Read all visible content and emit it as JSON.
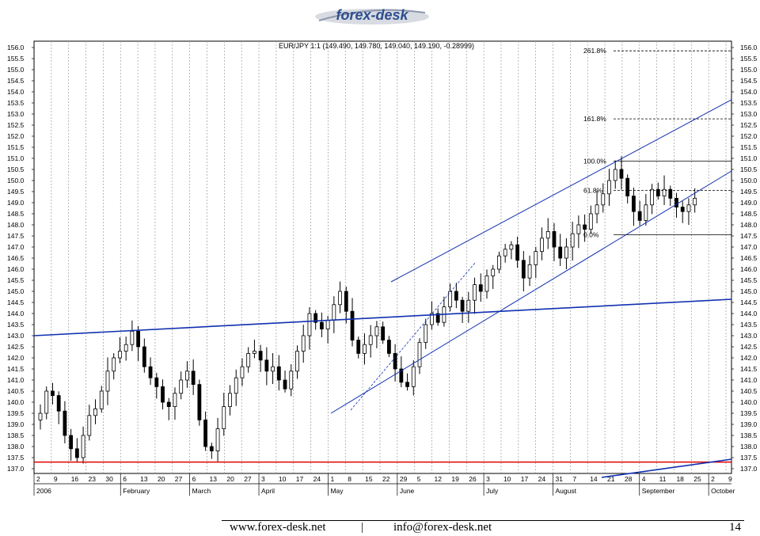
{
  "header": {
    "logo_text": "forex-desk"
  },
  "footer": {
    "website": "www.forex-desk.net",
    "separator": "|",
    "email": "info@forex-desk.net",
    "page": "14"
  },
  "chart_data": {
    "type": "candlestick",
    "title": "EUR/JPY 1:1 (149.490, 149.780, 149.040, 149.190, -0.28999)",
    "ylim": [
      137.0,
      156.0
    ],
    "y_ticks": [
      "156.0",
      "155.5",
      "155.0",
      "154.5",
      "154.0",
      "153.5",
      "153.0",
      "152.5",
      "152.0",
      "151.5",
      "151.0",
      "150.5",
      "150.0",
      "149.5",
      "149.0",
      "148.5",
      "148.0",
      "147.5",
      "147.0",
      "146.5",
      "146.0",
      "145.5",
      "145.0",
      "144.5",
      "144.0",
      "143.5",
      "143.0",
      "142.5",
      "142.0",
      "141.5",
      "141.0",
      "140.5",
      "140.0",
      "139.5",
      "139.0",
      "138.5",
      "138.0",
      "137.5",
      "137.0"
    ],
    "grid": "vertical-dotted",
    "x_day_labels": [
      "2",
      "9",
      "16",
      "23",
      "30",
      "6",
      "13",
      "20",
      "27",
      "6",
      "13",
      "20",
      "27",
      "3",
      "10",
      "17",
      "24",
      "1",
      "8",
      "15",
      "22",
      "29",
      "5",
      "12",
      "19",
      "26",
      "3",
      "10",
      "17",
      "24",
      "31",
      "7",
      "14",
      "21",
      "28",
      "4",
      "11",
      "18",
      "25",
      "2",
      "9"
    ],
    "x_month_labels": [
      {
        "label": "2006",
        "week": 0
      },
      {
        "label": "February",
        "week": 5
      },
      {
        "label": "March",
        "week": 9
      },
      {
        "label": "April",
        "week": 13
      },
      {
        "label": "May",
        "week": 17
      },
      {
        "label": "June",
        "week": 21
      },
      {
        "label": "July",
        "week": 26
      },
      {
        "label": "August",
        "week": 30
      },
      {
        "label": "September",
        "week": 35
      },
      {
        "label": "October",
        "week": 39
      }
    ],
    "fibonacci": [
      {
        "label": "261.8%",
        "price": 155.85
      },
      {
        "label": "161.8%",
        "price": 152.78
      },
      {
        "label": "100.0%",
        "price": 150.88
      },
      {
        "label": "61.8%",
        "price": 149.55
      },
      {
        "label": "0.0%",
        "price": 147.55
      }
    ],
    "horizontal_support": 137.3,
    "closes": [
      139.5,
      140.5,
      140.3,
      139.6,
      138.5,
      137.9,
      137.5,
      138.5,
      139.4,
      139.7,
      140.5,
      141.4,
      142.0,
      142.3,
      142.6,
      143.2,
      142.5,
      141.6,
      141.1,
      140.7,
      140.0,
      139.8,
      140.4,
      141.0,
      141.4,
      140.8,
      139.2,
      138.0,
      137.8,
      138.8,
      139.8,
      140.4,
      141.1,
      141.6,
      142.2,
      142.3,
      141.9,
      141.4,
      141.6,
      141.0,
      140.6,
      141.4,
      142.3,
      143.0,
      144.0,
      143.6,
      143.3,
      143.7,
      144.4,
      145.0,
      144.1,
      142.8,
      142.2,
      142.6,
      143.0,
      143.4,
      142.8,
      142.2,
      141.5,
      140.9,
      140.7,
      141.6,
      142.7,
      143.5,
      144.0,
      143.6,
      144.3,
      145.0,
      144.6,
      144.1,
      144.6,
      145.3,
      145.0,
      145.7,
      146.0,
      146.6,
      146.9,
      147.1,
      146.4,
      145.6,
      146.2,
      146.8,
      147.4,
      147.7,
      147.0,
      146.5,
      147.0,
      147.6,
      148.0,
      147.8,
      148.5,
      148.9,
      149.4,
      150.0,
      150.5,
      150.1,
      149.3,
      148.6,
      148.2,
      148.9,
      149.6,
      149.3,
      149.6,
      149.2,
      148.8,
      148.6,
      148.9,
      149.2
    ]
  }
}
